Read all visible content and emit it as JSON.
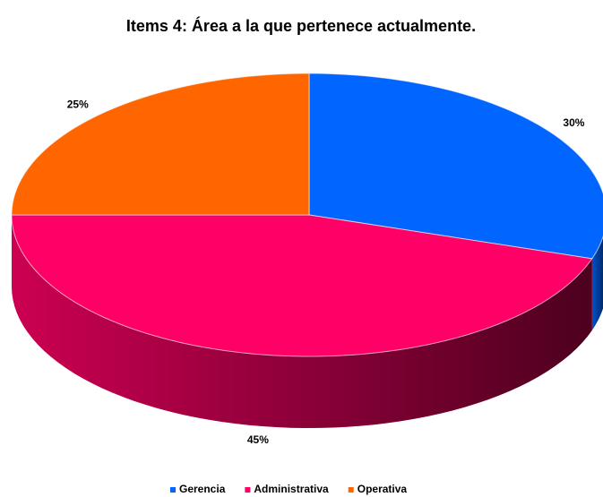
{
  "chart_data": {
    "type": "pie",
    "title": "Items 4: Área a la que pertenece actualmente.",
    "categories": [
      "Gerencia",
      "Administrativa",
      "Operativa"
    ],
    "values": [
      30,
      45,
      25
    ],
    "value_labels": [
      "30%",
      "45%",
      "25%"
    ],
    "colors": [
      "#0066ff",
      "#ff0066",
      "#ff6600"
    ],
    "legend": "bottom"
  }
}
